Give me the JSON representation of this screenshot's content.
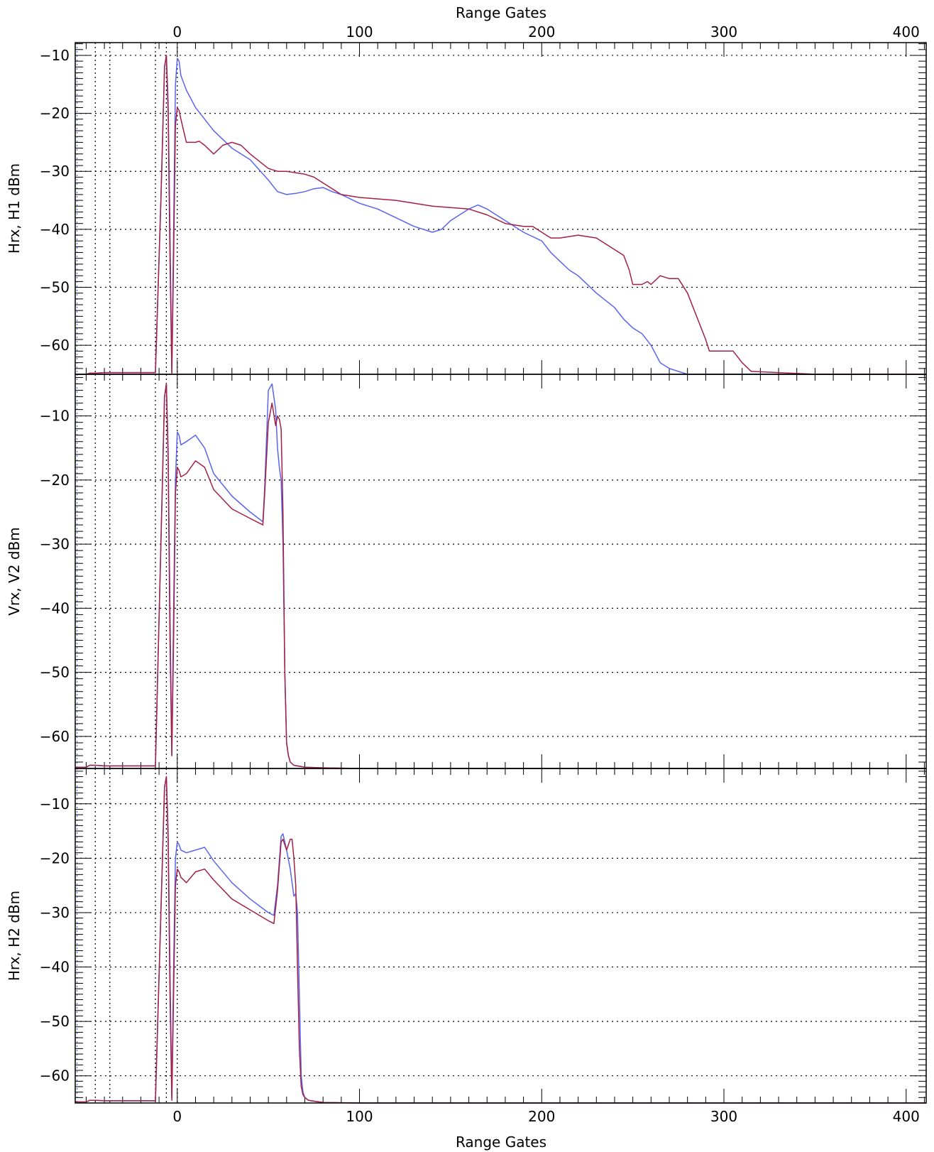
{
  "figure": {
    "x_axis_title_top": "Range Gates",
    "x_axis_title_bottom": "Range Gates"
  },
  "colors": {
    "blue": "#5a64f0",
    "red": "#a31f45",
    "axis": "#000000",
    "grid": "#000000"
  },
  "chart_data": [
    {
      "type": "line",
      "ylabel": "Hrx, H1 dBm",
      "xlim": [
        -56,
        411
      ],
      "ylim": [
        -65,
        -7.8
      ],
      "x_ticks": [
        0,
        100,
        200,
        300,
        400
      ],
      "y_ticks": [
        -10,
        -20,
        -30,
        -40,
        -50,
        -60
      ],
      "grid": true,
      "vertical_markers": [
        -55,
        -45,
        -37,
        -12,
        -6,
        0
      ],
      "series": [
        {
          "color": "blue",
          "x": [
            -56,
            -50,
            -48,
            -45,
            -40,
            -20,
            -12,
            -9,
            -7,
            -6,
            -5,
            -4,
            -3,
            -2,
            -1,
            0,
            1,
            2,
            5,
            10,
            20,
            30,
            40,
            50,
            55,
            60,
            65,
            70,
            75,
            80,
            85,
            90,
            100,
            110,
            120,
            130,
            140,
            145,
            150,
            160,
            165,
            170,
            175,
            180,
            190,
            200,
            205,
            210,
            215,
            220,
            230,
            240,
            245,
            250,
            255,
            260,
            265,
            270,
            275,
            280,
            290,
            300,
            310,
            320,
            350,
            411
          ],
          "y": [
            -65,
            -65,
            -64.8,
            -64.8,
            -64.7,
            -64.7,
            -64.7,
            -35,
            -12,
            -10,
            -18,
            -40,
            -64.8,
            -40,
            -15,
            -10.5,
            -11,
            -13.5,
            -16,
            -19,
            -23,
            -26,
            -28,
            -31.5,
            -33.5,
            -34,
            -33.8,
            -33.5,
            -33,
            -32.8,
            -33.5,
            -34,
            -35.5,
            -36.5,
            -38,
            -39.5,
            -40.5,
            -40,
            -38.5,
            -36.5,
            -35.8,
            -36.5,
            -37.5,
            -38.5,
            -40.5,
            -42,
            -44,
            -45.5,
            -47,
            -48,
            -51,
            -53.5,
            -55.5,
            -57,
            -58,
            -60,
            -63,
            -64,
            -64.5,
            -65,
            -65,
            -65,
            -65,
            -65,
            -65,
            -65
          ]
        },
        {
          "color": "red",
          "x": [
            -56,
            -50,
            -48,
            -45,
            -40,
            -20,
            -12,
            -9,
            -7,
            -6,
            -5,
            -4,
            -3,
            -2,
            -1,
            0,
            1,
            2,
            5,
            10,
            12,
            15,
            20,
            25,
            30,
            35,
            40,
            50,
            55,
            60,
            70,
            75,
            80,
            90,
            100,
            120,
            140,
            160,
            170,
            180,
            190,
            195,
            200,
            205,
            210,
            220,
            230,
            235,
            240,
            245,
            248,
            250,
            255,
            258,
            260,
            265,
            270,
            275,
            280,
            285,
            290,
            292,
            295,
            300,
            305,
            310,
            315,
            350,
            411
          ],
          "y": [
            -65,
            -65,
            -64.8,
            -64.8,
            -64.7,
            -64.7,
            -64.7,
            -35,
            -12,
            -10,
            -20,
            -45,
            -64.8,
            -45,
            -22,
            -19,
            -19.5,
            -21,
            -25,
            -25,
            -24.8,
            -25.5,
            -27,
            -25.5,
            -25,
            -25.5,
            -27,
            -29.5,
            -30,
            -30,
            -30.5,
            -31,
            -32,
            -34,
            -34.5,
            -35,
            -36,
            -36.5,
            -37.5,
            -39,
            -39.5,
            -39.5,
            -40.5,
            -41.5,
            -41.5,
            -41,
            -41.5,
            -42.5,
            -43.5,
            -44.5,
            -47,
            -49.5,
            -49.5,
            -49,
            -49.5,
            -48,
            -48.5,
            -48.5,
            -51,
            -55,
            -59,
            -61,
            -61,
            -61,
            -61,
            -63,
            -64.5,
            -65,
            -65
          ]
        }
      ]
    },
    {
      "type": "line",
      "ylabel": "Vrx, V2 dBm",
      "xlim": [
        -56,
        411
      ],
      "ylim": [
        -65,
        -3.5
      ],
      "x_ticks": [
        0,
        100,
        200,
        300,
        400
      ],
      "y_ticks": [
        -10,
        -20,
        -30,
        -40,
        -50,
        -60
      ],
      "grid": true,
      "vertical_markers": [
        -55,
        -45,
        -37,
        -12,
        -6,
        0
      ],
      "series": [
        {
          "color": "blue",
          "x": [
            -56,
            -50,
            -48,
            -45,
            -40,
            -20,
            -12,
            -9,
            -7,
            -6,
            -5,
            -4,
            -3,
            -2,
            -1,
            0,
            1,
            2,
            5,
            10,
            15,
            20,
            30,
            40,
            47,
            48,
            50,
            52,
            54,
            55,
            56,
            57,
            58,
            59,
            60,
            61,
            62,
            64,
            70,
            80,
            100,
            200,
            411
          ],
          "y": [
            -64.8,
            -64.8,
            -64.5,
            -64.5,
            -64.6,
            -64.6,
            -64.6,
            -30,
            -7,
            -5,
            -15,
            -40,
            -63,
            -40,
            -20,
            -12.5,
            -13,
            -14.5,
            -14,
            -13,
            -15,
            -19,
            -22.5,
            -25,
            -26.5,
            -21,
            -6,
            -5,
            -9,
            -15,
            -18,
            -20,
            -30,
            -50,
            -61,
            -63,
            -64,
            -64.5,
            -64.8,
            -64.9,
            -65,
            -65,
            -65
          ]
        },
        {
          "color": "red",
          "x": [
            -56,
            -50,
            -48,
            -45,
            -40,
            -20,
            -12,
            -9,
            -7,
            -6,
            -5,
            -4,
            -3,
            -2,
            -1,
            0,
            1,
            2,
            5,
            10,
            15,
            20,
            30,
            40,
            47,
            48,
            50,
            52,
            54,
            55,
            56,
            57,
            58,
            59,
            60,
            61,
            62,
            64,
            70,
            80,
            100,
            200,
            411
          ],
          "y": [
            -64.8,
            -64.8,
            -64.5,
            -64.5,
            -64.6,
            -64.6,
            -64.6,
            -30,
            -7,
            -5,
            -17,
            -45,
            -63,
            -45,
            -22,
            -18,
            -18.5,
            -19.5,
            -19,
            -17,
            -18,
            -21.5,
            -24.5,
            -26,
            -27,
            -22,
            -11,
            -8,
            -11.5,
            -10,
            -10.5,
            -12,
            -25,
            -50,
            -61,
            -63,
            -64,
            -64.5,
            -64.8,
            -64.9,
            -65,
            -65,
            -65
          ]
        }
      ]
    },
    {
      "type": "line",
      "ylabel": "Hrx, H2 dBm",
      "xlim": [
        -56,
        411
      ],
      "ylim": [
        -65,
        -3.5
      ],
      "x_ticks": [
        0,
        100,
        200,
        300,
        400
      ],
      "y_ticks": [
        -10,
        -20,
        -30,
        -40,
        -50,
        -60
      ],
      "grid": true,
      "vertical_markers": [
        -55,
        -45,
        -37,
        -12,
        -6,
        0
      ],
      "series": [
        {
          "color": "blue",
          "x": [
            -56,
            -50,
            -48,
            -45,
            -40,
            -20,
            -12,
            -9,
            -7,
            -6,
            -5,
            -4,
            -3,
            -2,
            -1,
            0,
            1,
            2,
            5,
            10,
            15,
            20,
            30,
            40,
            50,
            53,
            55,
            57,
            58,
            60,
            62,
            64,
            65,
            66,
            67,
            68,
            69,
            70,
            72,
            80,
            100,
            200,
            411
          ],
          "y": [
            -64.8,
            -64.8,
            -64.5,
            -64.5,
            -64.6,
            -64.6,
            -64.6,
            -30,
            -7,
            -5,
            -15,
            -40,
            -64,
            -40,
            -20,
            -17,
            -17.5,
            -18.5,
            -19,
            -18.5,
            -18,
            -20.5,
            -24.5,
            -27.5,
            -30,
            -30.5,
            -25,
            -16,
            -15.5,
            -18.5,
            -22,
            -27,
            -26.5,
            -30,
            -45,
            -60,
            -63,
            -64,
            -64.5,
            -64.9,
            -65,
            -65,
            -65
          ]
        },
        {
          "color": "red",
          "x": [
            -56,
            -50,
            -48,
            -45,
            -40,
            -20,
            -12,
            -9,
            -7,
            -6,
            -5,
            -4,
            -3,
            -2,
            -1,
            0,
            1,
            2,
            5,
            10,
            15,
            20,
            30,
            40,
            50,
            53,
            55,
            57,
            58,
            60,
            62,
            63,
            64,
            65,
            66,
            67,
            68,
            69,
            70,
            72,
            80,
            100,
            200,
            411
          ],
          "y": [
            -64.8,
            -64.8,
            -64.5,
            -64.5,
            -64.6,
            -64.6,
            -64.6,
            -30,
            -7,
            -5,
            -17,
            -45,
            -64.5,
            -45,
            -25,
            -22,
            -22.5,
            -23.5,
            -24.5,
            -22.5,
            -22,
            -24,
            -27.5,
            -29.5,
            -31.5,
            -32,
            -26,
            -17,
            -16.5,
            -18.5,
            -16.5,
            -16.5,
            -20,
            -25,
            -40,
            -55,
            -62,
            -63.5,
            -64,
            -64.5,
            -64.9,
            -65,
            -65,
            -65
          ]
        }
      ]
    }
  ]
}
